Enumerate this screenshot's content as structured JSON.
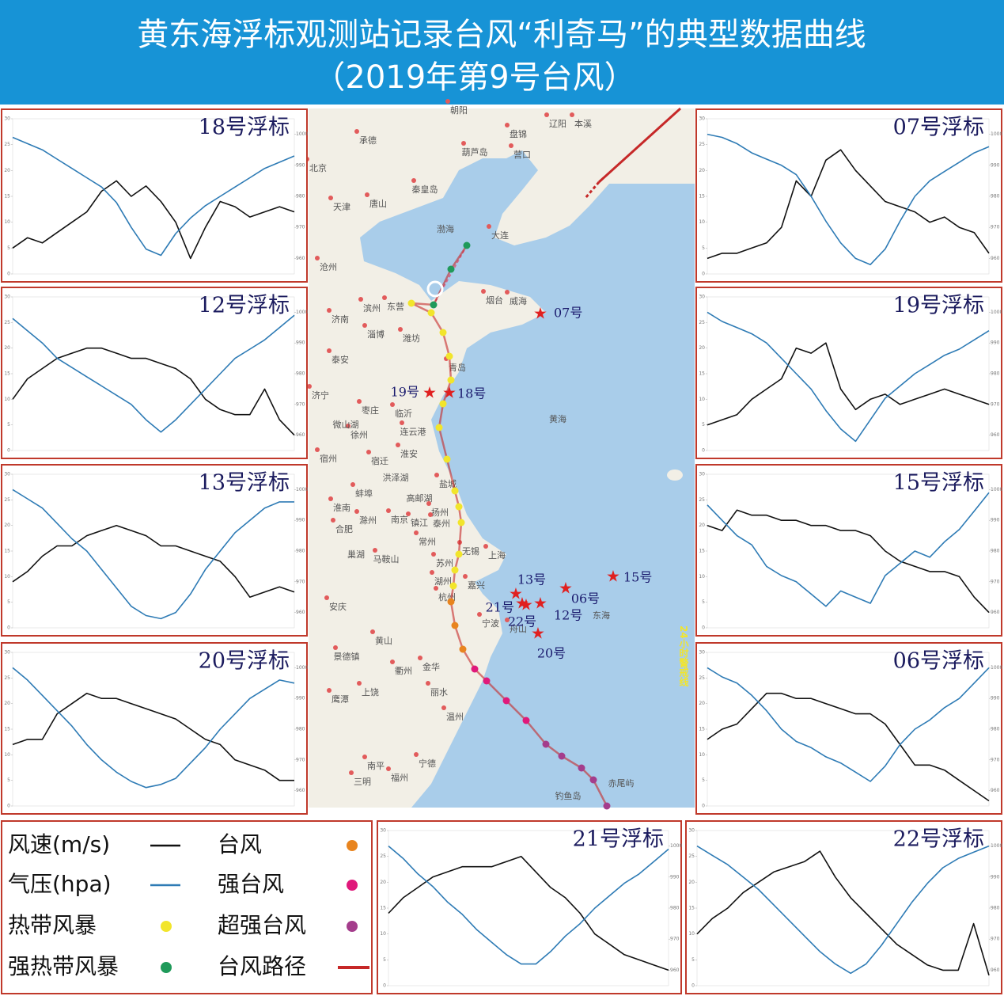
{
  "header": {
    "title": "黄东海浮标观测站记录台风“利奇马”的典型数据曲线",
    "subtitle": "（2019年第9号台风）"
  },
  "chart_data": [
    {
      "type": "line",
      "title": "18号浮标",
      "ylim": [
        0,
        30
      ],
      "yticks": [
        0,
        5,
        10,
        15,
        20,
        25,
        30
      ],
      "y2lim": [
        955,
        1005
      ],
      "y2ticks": [
        960,
        970,
        980,
        990,
        1000
      ],
      "series": [
        {
          "name": "风速(m/s)",
          "color": "#111111",
          "values": [
            5,
            7,
            6,
            8,
            10,
            12,
            16,
            18,
            15,
            17,
            14,
            10,
            3,
            9,
            14,
            13,
            11,
            12,
            13,
            12
          ]
        },
        {
          "name": "气压(hpa)",
          "color": "#2e7bb5",
          "axis": "y2",
          "values": [
            999,
            997,
            995,
            992,
            989,
            986,
            983,
            978,
            970,
            963,
            961,
            968,
            973,
            977,
            980,
            983,
            986,
            989,
            991,
            993
          ]
        }
      ]
    },
    {
      "type": "line",
      "title": "12号浮标",
      "ylim": [
        0,
        30
      ],
      "yticks": [
        0,
        5,
        10,
        15,
        20,
        25,
        30
      ],
      "y2lim": [
        955,
        1005
      ],
      "y2ticks": [
        960,
        970,
        980,
        990,
        1000
      ],
      "series": [
        {
          "name": "风速(m/s)",
          "color": "#111111",
          "values": [
            10,
            14,
            16,
            18,
            19,
            20,
            20,
            19,
            18,
            18,
            17,
            16,
            14,
            10,
            8,
            7,
            7,
            12,
            6,
            3
          ]
        },
        {
          "name": "气压(hpa)",
          "color": "#2e7bb5",
          "axis": "y2",
          "values": [
            998,
            994,
            990,
            985,
            982,
            979,
            976,
            973,
            970,
            965,
            961,
            965,
            970,
            975,
            980,
            985,
            988,
            991,
            995,
            999
          ]
        }
      ]
    },
    {
      "type": "line",
      "title": "13号浮标",
      "ylim": [
        0,
        30
      ],
      "yticks": [
        0,
        5,
        10,
        15,
        20,
        25,
        30
      ],
      "y2lim": [
        955,
        1005
      ],
      "y2ticks": [
        960,
        970,
        980,
        990,
        1000
      ],
      "series": [
        {
          "name": "风速(m/s)",
          "color": "#111111",
          "values": [
            9,
            11,
            14,
            16,
            16,
            18,
            19,
            20,
            19,
            18,
            16,
            16,
            15,
            14,
            13,
            10,
            6,
            7,
            8,
            7
          ]
        },
        {
          "name": "气压(hpa)",
          "color": "#2e7bb5",
          "axis": "y2",
          "values": [
            1000,
            997,
            994,
            989,
            984,
            980,
            974,
            968,
            962,
            959,
            958,
            960,
            966,
            974,
            980,
            986,
            990,
            994,
            996,
            996
          ]
        }
      ]
    },
    {
      "type": "line",
      "title": "20号浮标",
      "ylim": [
        0,
        30
      ],
      "yticks": [
        0,
        5,
        10,
        15,
        20,
        25,
        30
      ],
      "y2lim": [
        955,
        1005
      ],
      "y2ticks": [
        960,
        970,
        980,
        990,
        1000
      ],
      "series": [
        {
          "name": "风速(m/s)",
          "color": "#111111",
          "values": [
            12,
            13,
            13,
            18,
            20,
            22,
            21,
            21,
            20,
            19,
            18,
            17,
            15,
            13,
            12,
            9,
            8,
            7,
            5,
            5
          ]
        },
        {
          "name": "气压(hpa)",
          "color": "#2e7bb5",
          "axis": "y2",
          "values": [
            1000,
            996,
            991,
            986,
            981,
            975,
            970,
            966,
            963,
            961,
            962,
            964,
            969,
            974,
            980,
            985,
            990,
            993,
            996,
            995
          ]
        }
      ]
    },
    {
      "type": "line",
      "title": "07号浮标",
      "ylim": [
        0,
        30
      ],
      "yticks": [
        0,
        5,
        10,
        15,
        20,
        25,
        30
      ],
      "y2lim": [
        955,
        1005
      ],
      "y2ticks": [
        960,
        970,
        980,
        990,
        1000
      ],
      "series": [
        {
          "name": "风速(m/s)",
          "color": "#111111",
          "values": [
            3,
            4,
            4,
            5,
            6,
            9,
            18,
            15,
            22,
            24,
            20,
            17,
            14,
            13,
            12,
            10,
            11,
            9,
            8,
            4
          ]
        },
        {
          "name": "气压(hpa)",
          "color": "#2e7bb5",
          "axis": "y2",
          "values": [
            1000,
            999,
            997,
            994,
            992,
            990,
            987,
            980,
            972,
            965,
            960,
            958,
            963,
            972,
            980,
            985,
            988,
            991,
            994,
            996
          ]
        }
      ]
    },
    {
      "type": "line",
      "title": "19号浮标",
      "ylim": [
        0,
        30
      ],
      "yticks": [
        0,
        5,
        10,
        15,
        20,
        25,
        30
      ],
      "y2lim": [
        955,
        1005
      ],
      "y2ticks": [
        960,
        970,
        980,
        990,
        1000
      ],
      "series": [
        {
          "name": "风速(m/s)",
          "color": "#111111",
          "values": [
            5,
            6,
            7,
            10,
            12,
            14,
            20,
            19,
            21,
            12,
            8,
            10,
            11,
            9,
            10,
            11,
            12,
            11,
            10,
            9
          ]
        },
        {
          "name": "气压(hpa)",
          "color": "#2e7bb5",
          "axis": "y2",
          "values": [
            1000,
            997,
            995,
            993,
            990,
            985,
            980,
            975,
            968,
            962,
            958,
            965,
            972,
            976,
            980,
            983,
            986,
            988,
            991,
            994
          ]
        }
      ]
    },
    {
      "type": "line",
      "title": "15号浮标",
      "ylim": [
        0,
        30
      ],
      "yticks": [
        0,
        5,
        10,
        15,
        20,
        25,
        30
      ],
      "y2lim": [
        955,
        1005
      ],
      "y2ticks": [
        960,
        970,
        980,
        990,
        1000
      ],
      "series": [
        {
          "name": "风速(m/s)",
          "color": "#111111",
          "values": [
            20,
            19,
            23,
            22,
            22,
            21,
            21,
            20,
            20,
            19,
            19,
            18,
            15,
            13,
            12,
            11,
            11,
            10,
            6,
            3
          ]
        },
        {
          "name": "气压(hpa)",
          "color": "#2e7bb5",
          "axis": "y2",
          "values": [
            995,
            990,
            985,
            982,
            975,
            972,
            970,
            966,
            962,
            967,
            965,
            963,
            972,
            976,
            980,
            978,
            983,
            987,
            993,
            999
          ]
        }
      ]
    },
    {
      "type": "line",
      "title": "06号浮标",
      "ylim": [
        0,
        30
      ],
      "yticks": [
        0,
        5,
        10,
        15,
        20,
        25,
        30
      ],
      "y2lim": [
        955,
        1005
      ],
      "y2ticks": [
        960,
        970,
        980,
        990,
        1000
      ],
      "series": [
        {
          "name": "风速(m/s)",
          "color": "#111111",
          "values": [
            13,
            15,
            16,
            19,
            22,
            22,
            21,
            21,
            20,
            19,
            18,
            18,
            16,
            12,
            8,
            8,
            7,
            5,
            3,
            1
          ]
        },
        {
          "name": "气压(hpa)",
          "color": "#2e7bb5",
          "axis": "y2",
          "values": [
            1000,
            997,
            995,
            991,
            986,
            980,
            976,
            974,
            971,
            969,
            966,
            963,
            968,
            975,
            980,
            983,
            987,
            990,
            995,
            1000
          ]
        }
      ]
    },
    {
      "type": "line",
      "title": "21号浮标",
      "ylim": [
        0,
        30
      ],
      "yticks": [
        0,
        5,
        10,
        15,
        20,
        25,
        30
      ],
      "y2lim": [
        955,
        1005
      ],
      "y2ticks": [
        960,
        970,
        980,
        990,
        1000
      ],
      "series": [
        {
          "name": "风速(m/s)",
          "color": "#111111",
          "values": [
            14,
            17,
            19,
            21,
            22,
            23,
            23,
            23,
            24,
            25,
            22,
            19,
            17,
            14,
            10,
            8,
            6,
            5,
            4,
            3
          ]
        },
        {
          "name": "气压(hpa)",
          "color": "#2e7bb5",
          "axis": "y2",
          "values": [
            1000,
            996,
            991,
            987,
            982,
            978,
            973,
            969,
            965,
            962,
            962,
            966,
            971,
            975,
            980,
            984,
            988,
            991,
            995,
            999
          ]
        }
      ]
    },
    {
      "type": "line",
      "title": "22号浮标",
      "ylim": [
        0,
        30
      ],
      "yticks": [
        0,
        5,
        10,
        15,
        20,
        25,
        30
      ],
      "y2lim": [
        955,
        1005
      ],
      "y2ticks": [
        960,
        970,
        980,
        990,
        1000
      ],
      "series": [
        {
          "name": "风速(m/s)",
          "color": "#111111",
          "values": [
            10,
            13,
            15,
            18,
            20,
            22,
            23,
            24,
            26,
            21,
            17,
            14,
            11,
            8,
            6,
            4,
            3,
            3,
            12,
            2
          ]
        },
        {
          "name": "气压(hpa)",
          "color": "#2e7bb5",
          "axis": "y2",
          "values": [
            1000,
            997,
            994,
            990,
            986,
            981,
            976,
            971,
            966,
            962,
            959,
            962,
            968,
            975,
            982,
            988,
            993,
            996,
            998,
            1000
          ]
        }
      ]
    }
  ],
  "map": {
    "labels": [
      "朝阳",
      "承德",
      "北京",
      "天津",
      "唐山",
      "秦皇岛",
      "葫芦岛",
      "盘锦",
      "辽阳",
      "本溪",
      "营口",
      "渤海",
      "大连",
      "沧州",
      "济南",
      "滨州",
      "东营",
      "烟台",
      "威海",
      "潍坊",
      "淄博",
      "泰安",
      "青岛",
      "济宁",
      "枣庄",
      "临沂",
      "徐州",
      "微山湖",
      "连云港",
      "宿迁",
      "淮安",
      "宿州",
      "洪泽湖",
      "盐城",
      "蚌埠",
      "高邮湖",
      "淮南",
      "扬州",
      "泰州",
      "合肥",
      "南京",
      "滁州",
      "镇江",
      "常州",
      "无锡",
      "上海",
      "苏州",
      "巢湖",
      "马鞍山",
      "湖州",
      "嘉兴",
      "杭州",
      "宁波",
      "舟山",
      "安庆",
      "黄山",
      "金华",
      "衢州",
      "丽水",
      "景德镇",
      "上饶",
      "鹰潭",
      "温州",
      "宁德",
      "南平",
      "三明",
      "福州",
      "钓鱼岛",
      "赤尾屿",
      "黄海",
      "东海"
    ],
    "buoys": [
      "07号",
      "19号",
      "18号",
      "13号",
      "06号",
      "15号",
      "21号",
      "22号",
      "12号",
      "20号"
    ],
    "warning_line": "24小时警戒线",
    "legend": [
      {
        "label": "台风",
        "color": "#e8841f",
        "marker": "dot"
      },
      {
        "label": "强台风",
        "color": "#e0197b",
        "marker": "dot"
      },
      {
        "label": "热带风暴",
        "color": "#f2e52b",
        "marker": "dot"
      },
      {
        "label": "超强台风",
        "color": "#a43d8c",
        "marker": "dot"
      },
      {
        "label": "强热带风暴",
        "color": "#1f9a5a",
        "marker": "dot"
      },
      {
        "label": "台风路径",
        "color": "#c62828",
        "marker": "line"
      }
    ]
  }
}
